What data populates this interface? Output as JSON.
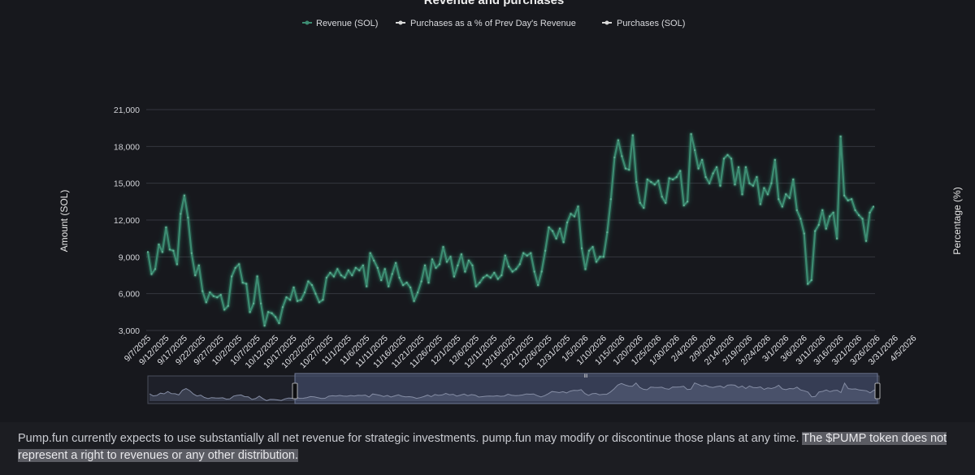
{
  "chart_data": {
    "type": "line",
    "title": "Revenue and purchases",
    "ylabel": "Amount (SOL)",
    "y2label": "Percentage (%)",
    "ylim": [
      3000,
      21000
    ],
    "y_ticks": [
      "21,000",
      "18,000",
      "15,000",
      "12,000",
      "9,000",
      "6,000",
      "3,000"
    ],
    "y_tick_values": [
      21000,
      18000,
      15000,
      12000,
      9000,
      6000,
      3000
    ],
    "legend": [
      {
        "name": "Revenue (SOL)",
        "color": "#3d8c72"
      },
      {
        "name": "Purchases as a % of Prev Day's Revenue",
        "color": "#d8d8d8"
      },
      {
        "name": "Purchases (SOL)",
        "color": "#d8d8d8"
      }
    ],
    "x_tick_labels": [
      "9/7/2025",
      "9/12/2025",
      "9/17/2025",
      "9/22/2025",
      "9/27/2025",
      "10/2/2025",
      "10/7/2025",
      "10/12/2025",
      "10/17/2025",
      "10/22/2025",
      "10/27/2025",
      "11/1/2025",
      "11/6/2025",
      "11/11/2025",
      "11/16/2025",
      "11/21/2025",
      "11/26/2025",
      "12/1/2025",
      "12/6/2025",
      "12/11/2025",
      "12/16/2025",
      "12/21/2025",
      "12/26/2025",
      "12/31/2025",
      "1/5/2026",
      "1/10/2026",
      "1/15/2026",
      "1/20/2026",
      "1/25/2026",
      "1/30/2026",
      "2/4/2026",
      "2/9/2026",
      "2/14/2026",
      "2/19/2026",
      "2/24/2026",
      "3/1/2026",
      "3/6/2026",
      "3/11/2026",
      "3/16/2026",
      "3/21/2026",
      "3/26/2026",
      "3/31/2026",
      "4/5/2026"
    ],
    "series": [
      {
        "name": "Revenue (SOL)",
        "color": "#3d8c72",
        "start_date": "9/7/2025",
        "values": [
          9400,
          7600,
          8000,
          10000,
          9400,
          11400,
          9600,
          9500,
          8400,
          12500,
          14000,
          12200,
          9300,
          7500,
          8300,
          6200,
          5300,
          6100,
          5800,
          5700,
          5900,
          4700,
          5000,
          7400,
          8100,
          8400,
          6900,
          6800,
          4500,
          5200,
          7400,
          5200,
          3400,
          4500,
          4400,
          4100,
          3600,
          4900,
          5700,
          5500,
          6500,
          5400,
          5500,
          6100,
          7000,
          6700,
          6000,
          5300,
          5500,
          7300,
          7700,
          7400,
          8000,
          7500,
          7300,
          7900,
          7500,
          8100,
          7900,
          8300,
          6600,
          9300,
          8700,
          8100,
          7100,
          8000,
          6600,
          7600,
          8500,
          7300,
          6700,
          6900,
          6500,
          5400,
          6100,
          7000,
          8300,
          6900,
          8800,
          8100,
          8400,
          9800,
          8600,
          9000,
          7400,
          8300,
          9200,
          7800,
          8700,
          8300,
          6600,
          6900,
          7300,
          7500,
          7300,
          7700,
          7200,
          7500,
          9100,
          8200,
          7800,
          8000,
          8400,
          9300,
          9100,
          9300,
          7800,
          6700,
          7800,
          9500,
          11400,
          11100,
          10500,
          11300,
          10200,
          11800,
          12500,
          12300,
          13100,
          9700,
          8000,
          9500,
          9800,
          8600,
          9000,
          9000,
          11000,
          13700,
          17100,
          18500,
          17200,
          16200,
          16100,
          18900,
          15100,
          13400,
          13000,
          15300,
          15100,
          14900,
          15200,
          13900,
          13400,
          15400,
          15300,
          15500,
          16000,
          13200,
          13500,
          19000,
          17700,
          16200,
          16900,
          15500,
          15000,
          15800,
          16300,
          14800,
          17000,
          17300,
          17000,
          14900,
          16300,
          14100,
          16300,
          15000,
          14800,
          15500,
          13300,
          14600,
          14100,
          15000,
          16900,
          13700,
          13100,
          14100,
          13800,
          15300,
          12800,
          12100,
          10900,
          6800,
          7100,
          11100,
          11600,
          12800,
          11300,
          12300,
          12600,
          10500,
          18800,
          14000,
          13600,
          13700,
          12800,
          12400,
          12100,
          10300,
          12600,
          13100
        ]
      }
    ]
  },
  "navigator": {
    "handle_label": "III"
  },
  "disclaimer": {
    "text": "Pump.fun currently expects to use substantially all net revenue for strategic investments. pump.fun may modify or discontinue those plans at any time.",
    "highlighted": "The $PUMP token does not represent a right to revenues or any other distribution."
  }
}
